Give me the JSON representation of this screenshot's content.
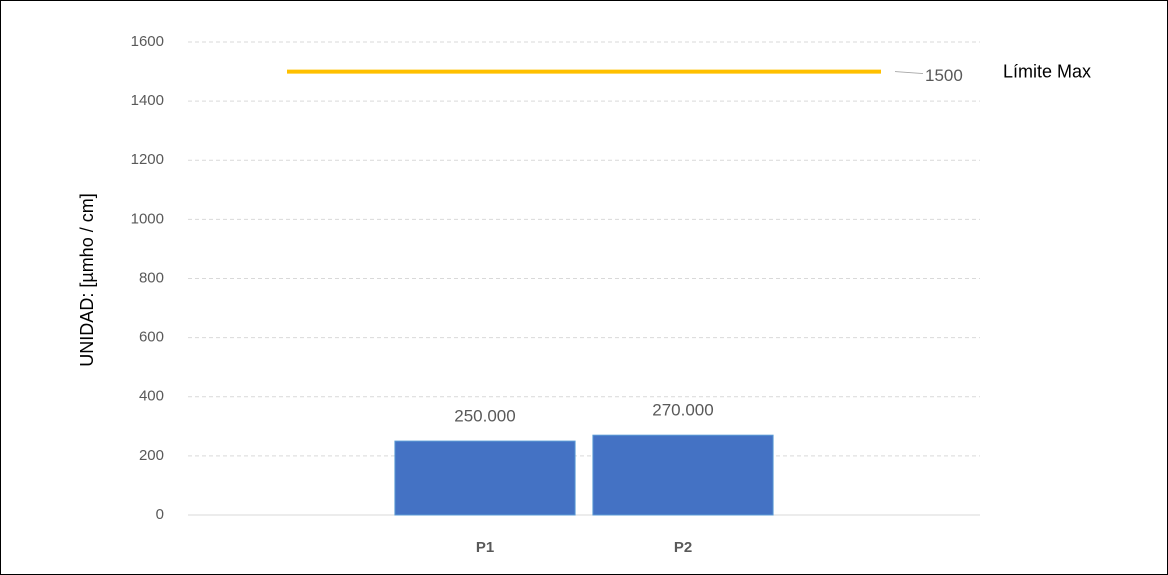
{
  "chart_data": {
    "type": "bar",
    "y_label": "UNIDAD:  [µmho / cm]",
    "categories": [
      null,
      "P1",
      "P2",
      null
    ],
    "series": [
      {
        "type": "bar",
        "color": "#4472c4",
        "values": [
          null,
          250,
          270,
          null
        ],
        "value_labels": [
          null,
          "250.000",
          "270.000",
          null
        ]
      },
      {
        "type": "line",
        "name": "Límite Max",
        "color": "#ffc000",
        "values": [
          1500,
          1500,
          1500,
          1500
        ]
      }
    ],
    "ylim": [
      0,
      1600
    ],
    "yticks": [
      0,
      200,
      400,
      600,
      800,
      1000,
      1200,
      1400,
      1600
    ],
    "grid": true
  }
}
